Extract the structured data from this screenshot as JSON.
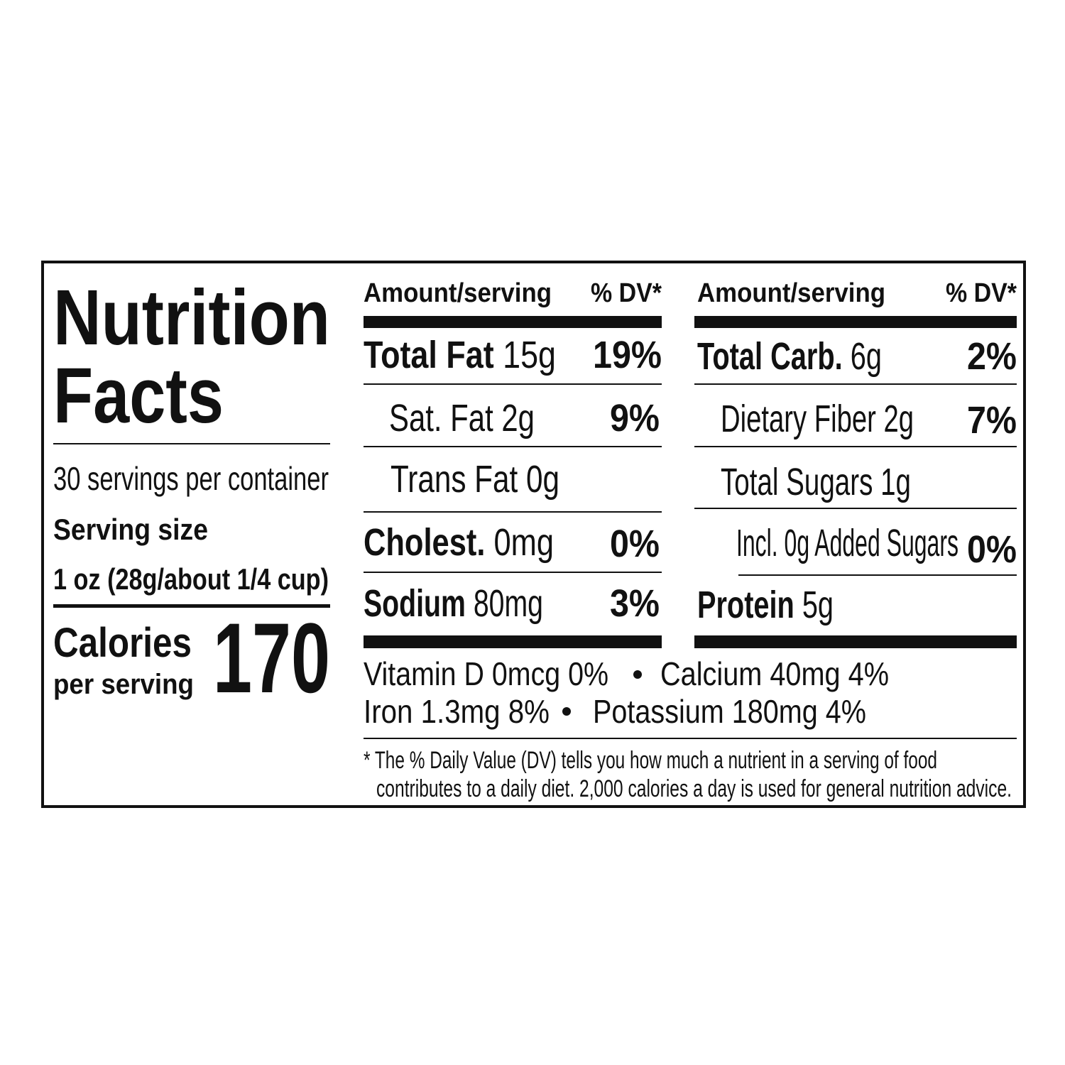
{
  "title": {
    "line1": "Nutrition",
    "line2": "Facts"
  },
  "servings_per_container": "30 servings per container",
  "serving_size_label": "Serving size",
  "serving_size": "1 oz (28g/about 1/4 cup)",
  "calories_label": "Calories",
  "calories_sublabel": "per serving",
  "calories": "170",
  "columns": [
    {
      "header_amount": "Amount/serving",
      "header_dv": "% DV*",
      "rows": [
        {
          "name": "Total Fat",
          "amount": "15g",
          "dv": "19%"
        },
        {
          "name": "Sat. Fat",
          "amount": "2g",
          "dv": "9%"
        },
        {
          "name": "Trans Fat",
          "amount": "0g"
        },
        {
          "name": "Cholest.",
          "amount": "0mg",
          "dv": "0%"
        },
        {
          "name": "Sodium",
          "amount": "80mg",
          "dv": "3%"
        }
      ]
    },
    {
      "header_amount": "Amount/serving",
      "header_dv": "% DV*",
      "rows": [
        {
          "name": "Total Carb.",
          "amount": "6g",
          "dv": "2%"
        },
        {
          "name": "Dietary Fiber",
          "amount": "2g",
          "dv": "7%"
        },
        {
          "name": "Total Sugars",
          "amount": "1g"
        },
        {
          "name": "Incl. 0g Added Sugars",
          "dv": "0%"
        },
        {
          "name": "Protein",
          "amount": "5g"
        }
      ]
    }
  ],
  "vitamins": [
    "Vitamin D 0mcg 0%",
    "Calcium 40mg 4%",
    "Iron 1.3mg 8%",
    "Potassium 180mg 4%"
  ],
  "footnote": [
    "* The % Daily Value (DV) tells you how much a nutrient in a serving of food",
    "contributes to a daily diet. 2,000 calories a day is used for general nutrition advice."
  ]
}
